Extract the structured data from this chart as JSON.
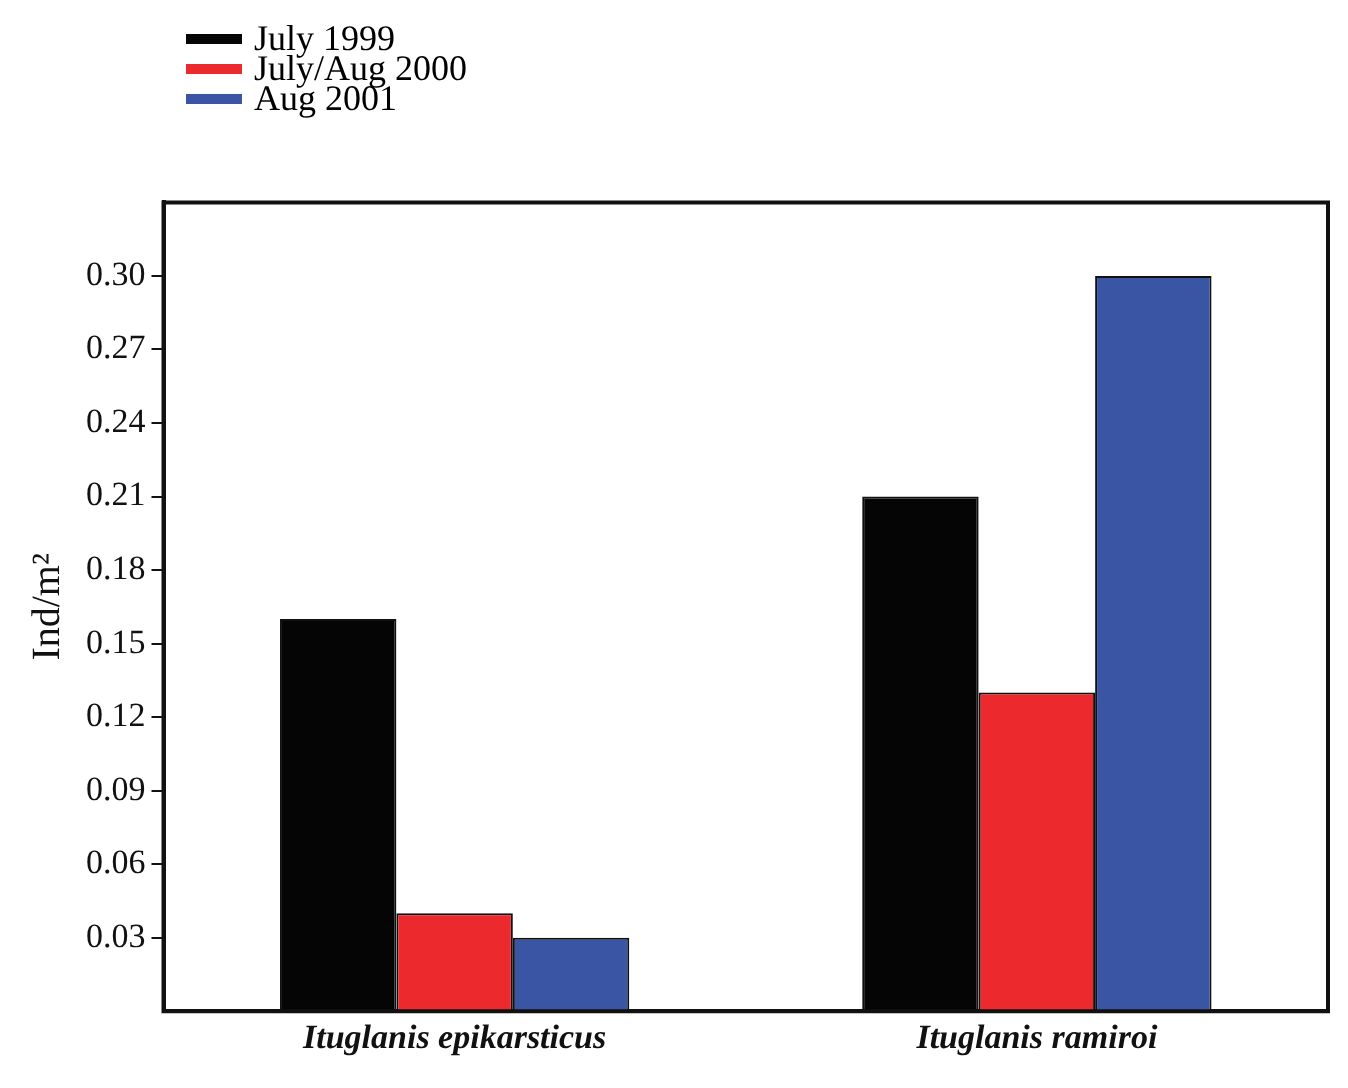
{
  "chart_data": {
    "type": "bar",
    "ylabel": "Ind/m²",
    "categories": [
      "Ituglanis epikarsticus",
      "Ituglanis ramiroi"
    ],
    "series": [
      {
        "name": "July 1999",
        "color": "#050505",
        "values": [
          0.16,
          0.21
        ]
      },
      {
        "name": "July/Aug 2000",
        "color": "#ec2a2e",
        "values": [
          0.04,
          0.13
        ]
      },
      {
        "name": "Aug 2001",
        "color": "#3a55a4",
        "values": [
          0.03,
          0.3
        ]
      }
    ],
    "ylim": [
      0,
      0.33
    ],
    "yticks": [
      0.03,
      0.06,
      0.09,
      0.12,
      0.15,
      0.18,
      0.21,
      0.24,
      0.27,
      {
        "value": 0.3,
        "label": "0.30"
      }
    ],
    "grid": false,
    "legend": "top left"
  }
}
